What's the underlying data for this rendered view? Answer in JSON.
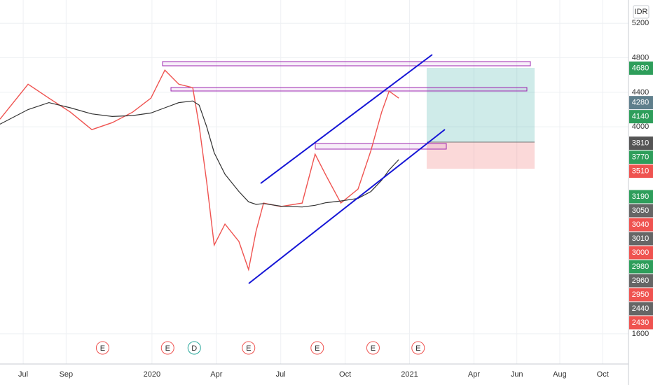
{
  "chart_data": {
    "type": "line",
    "currency": "IDR",
    "xlim": [
      -1.08,
      28.2
    ],
    "xticks": [
      {
        "value": 0,
        "label": "Jul"
      },
      {
        "value": 2,
        "label": "Sep"
      },
      {
        "value": 6,
        "label": "2020"
      },
      {
        "value": 9,
        "label": "Apr"
      },
      {
        "value": 12,
        "label": "Jul"
      },
      {
        "value": 15,
        "label": "Oct"
      },
      {
        "value": 18,
        "label": "2021"
      },
      {
        "value": 21,
        "label": "Apr"
      },
      {
        "value": 23,
        "label": "Jun"
      },
      {
        "value": 25,
        "label": "Aug"
      },
      {
        "value": 27,
        "label": "Oct"
      }
    ],
    "ylim": [
      1250,
      5470
    ],
    "yticks": [
      1600,
      4000,
      4400,
      4800,
      5200
    ],
    "grid": true,
    "x": [
      -1.08,
      0.23,
      1.2,
      2.2,
      3.2,
      4.15,
      5.1,
      5.95,
      6.6,
      7.25,
      7.9,
      8.2,
      8.55,
      8.9,
      9.4,
      10.05,
      10.5,
      10.85,
      11.2,
      12,
      13,
      13.6,
      14.1,
      14.8,
      15.6,
      16.2,
      16.7,
      17.05,
      17.5
    ],
    "series": [
      {
        "color": "#ef5350",
        "values": [
          4089,
          4494,
          4332,
          4170,
          3967,
          4048,
          4170,
          4332,
          4657,
          4494,
          4454,
          4008,
          3359,
          2629,
          2872,
          2670,
          2345,
          2791,
          3116,
          3075,
          3116,
          3683,
          3440,
          3116,
          3278,
          3724,
          4170,
          4413,
          4332
        ]
      },
      {
        "color": "#333333",
        "values": [
          4030,
          4200,
          4280,
          4220,
          4150,
          4120,
          4130,
          4160,
          4220,
          4280,
          4300,
          4250,
          4000,
          3700,
          3450,
          3250,
          3130,
          3100,
          3110,
          3080,
          3070,
          3090,
          3120,
          3140,
          3170,
          3250,
          3380,
          3500,
          3620
        ]
      }
    ],
    "price_labels": [
      {
        "value": 4680,
        "color": "#2e9e5b"
      },
      {
        "value": 4280,
        "color": "#5f7f8c"
      },
      {
        "value": 4140,
        "color": "#2e9e5b"
      },
      {
        "value": 3810,
        "color": "#555555"
      },
      {
        "value": 3770,
        "color": "#2e9e5b"
      },
      {
        "value": 3510,
        "color": "#ef5350"
      },
      {
        "value": 3190,
        "color": "#2e9e5b"
      },
      {
        "value": 3050,
        "color": "#666666"
      },
      {
        "value": 3040,
        "color": "#ef5350"
      },
      {
        "value": 3010,
        "color": "#666666"
      },
      {
        "value": 3000,
        "color": "#ef5350"
      },
      {
        "value": 2980,
        "color": "#2e9e5b"
      },
      {
        "value": 2960,
        "color": "#666666"
      },
      {
        "value": 2950,
        "color": "#ef5350"
      },
      {
        "value": 2440,
        "color": "#666666"
      },
      {
        "value": 2430,
        "color": "#ef5350"
      }
    ],
    "events": [
      {
        "x": 3.7,
        "label": "E",
        "color": "#ef5350"
      },
      {
        "x": 6.73,
        "label": "E",
        "color": "#ef5350"
      },
      {
        "x": 7.97,
        "label": "D",
        "color": "#26a69a"
      },
      {
        "x": 10.5,
        "label": "E",
        "color": "#ef5350"
      },
      {
        "x": 13.7,
        "label": "E",
        "color": "#ef5350"
      },
      {
        "x": 16.3,
        "label": "E",
        "color": "#ef5350"
      },
      {
        "x": 18.4,
        "label": "E",
        "color": "#ef5350"
      }
    ]
  }
}
